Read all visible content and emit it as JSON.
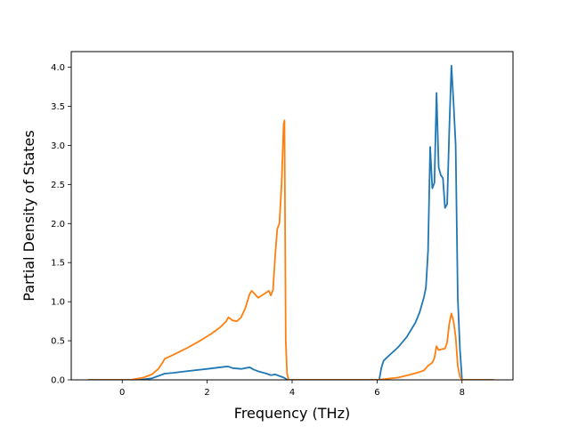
{
  "chart_data": {
    "type": "line",
    "title": "",
    "xlabel": "Frequency (THz)",
    "ylabel": "Partial Density of States",
    "xlim": [
      -1.2,
      9.2
    ],
    "ylim": [
      0,
      4.2
    ],
    "xticks": [
      0,
      2,
      4,
      6,
      8
    ],
    "xtick_labels": [
      "0",
      "2",
      "4",
      "6",
      "8"
    ],
    "yticks": [
      0,
      0.5,
      1.0,
      1.5,
      2.0,
      2.5,
      3.0,
      3.5,
      4.0
    ],
    "ytick_labels": [
      "0.0",
      "0.5",
      "1.0",
      "1.5",
      "2.0",
      "2.5",
      "3.0",
      "3.5",
      "4.0"
    ],
    "grid": false,
    "legend": "none",
    "series": [
      {
        "color": "#1f77b4",
        "x": [
          -0.8,
          0.4,
          0.7,
          0.85,
          0.95,
          1.0,
          1.2,
          1.5,
          2.0,
          2.3,
          2.45,
          2.5,
          2.6,
          2.8,
          2.9,
          3.0,
          3.1,
          3.2,
          3.4,
          3.5,
          3.6,
          3.7,
          3.8,
          3.9,
          4.2,
          5.0,
          5.8,
          6.05,
          6.1,
          6.15,
          6.2,
          6.3,
          6.5,
          6.7,
          6.9,
          7.0,
          7.1,
          7.15,
          7.2,
          7.25,
          7.3,
          7.35,
          7.4,
          7.45,
          7.5,
          7.55,
          7.6,
          7.65,
          7.7,
          7.75,
          7.8,
          7.85,
          7.9,
          7.95,
          8.0,
          8.5,
          8.75
        ],
        "y": [
          0.0,
          0.0,
          0.02,
          0.05,
          0.07,
          0.08,
          0.09,
          0.11,
          0.14,
          0.16,
          0.17,
          0.17,
          0.15,
          0.14,
          0.15,
          0.16,
          0.13,
          0.11,
          0.08,
          0.06,
          0.07,
          0.05,
          0.03,
          0.0,
          0.0,
          0.0,
          0.0,
          0.0,
          0.15,
          0.24,
          0.27,
          0.32,
          0.42,
          0.55,
          0.73,
          0.86,
          1.05,
          1.18,
          1.65,
          2.98,
          2.45,
          2.52,
          3.67,
          2.72,
          2.62,
          2.58,
          2.2,
          2.25,
          3.2,
          4.02,
          3.55,
          3.0,
          1.05,
          0.4,
          0.0,
          0.0,
          0.0
        ]
      },
      {
        "color": "#ff7f0e",
        "x": [
          -0.8,
          0.2,
          0.5,
          0.7,
          0.85,
          0.95,
          1.0,
          1.2,
          1.5,
          1.8,
          2.1,
          2.3,
          2.45,
          2.5,
          2.6,
          2.7,
          2.8,
          2.9,
          3.0,
          3.05,
          3.2,
          3.4,
          3.45,
          3.5,
          3.55,
          3.6,
          3.65,
          3.7,
          3.75,
          3.8,
          3.82,
          3.85,
          3.88,
          3.92,
          4.0,
          5.0,
          6.0,
          6.5,
          6.8,
          7.0,
          7.1,
          7.2,
          7.3,
          7.35,
          7.4,
          7.45,
          7.5,
          7.6,
          7.65,
          7.7,
          7.75,
          7.8,
          7.85,
          7.9,
          7.95,
          8.0,
          8.5,
          8.75
        ],
        "y": [
          0.0,
          0.0,
          0.03,
          0.07,
          0.14,
          0.22,
          0.27,
          0.32,
          0.4,
          0.49,
          0.59,
          0.67,
          0.75,
          0.8,
          0.76,
          0.75,
          0.8,
          0.92,
          1.1,
          1.14,
          1.05,
          1.12,
          1.14,
          1.08,
          1.15,
          1.58,
          1.93,
          2.0,
          2.48,
          3.27,
          3.32,
          0.5,
          0.08,
          0.0,
          0.0,
          0.0,
          0.0,
          0.03,
          0.07,
          0.1,
          0.12,
          0.18,
          0.22,
          0.28,
          0.43,
          0.38,
          0.39,
          0.4,
          0.48,
          0.72,
          0.85,
          0.75,
          0.55,
          0.18,
          0.04,
          0.0,
          0.0,
          0.0
        ]
      }
    ]
  }
}
